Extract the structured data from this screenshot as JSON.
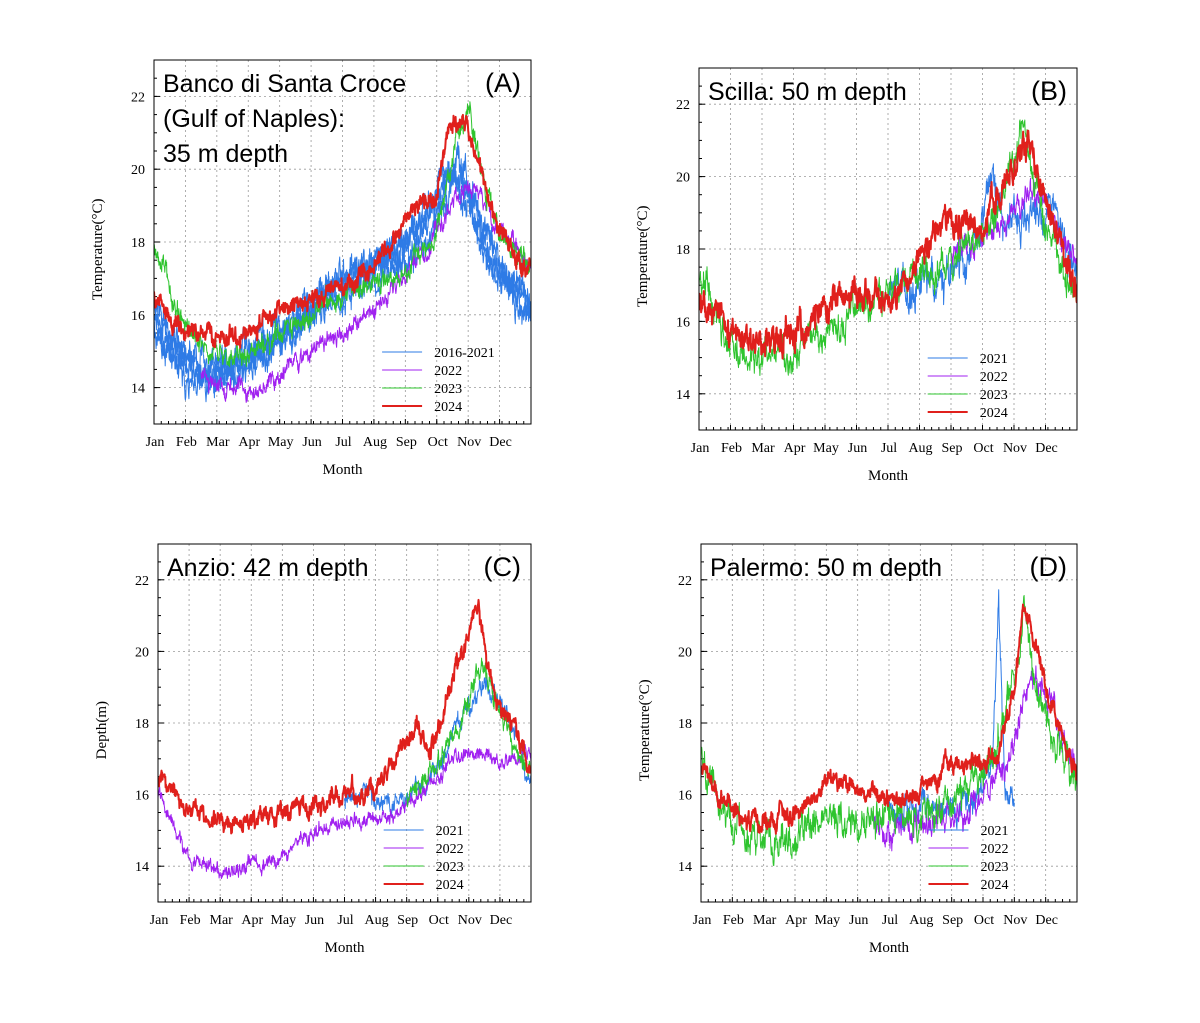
{
  "chart_data": [
    {
      "type": "line",
      "panel": "A",
      "title": "Banco di Santa Croce\n(Gulf of Naples):\n35 m depth",
      "letter": "(A)",
      "xlabel": "Month",
      "ylabel": "Temperature(°C)",
      "ylim": [
        13,
        23
      ],
      "yticks": [
        14,
        16,
        18,
        20,
        22
      ],
      "xlim": [
        0,
        12
      ],
      "xticks": [
        "Jan",
        "Feb",
        "Mar",
        "Apr",
        "May",
        "Jun",
        "Jul",
        "Aug",
        "Sep",
        "Oct",
        "Nov",
        "Dec"
      ],
      "grid": true,
      "legend_position": "bottom-right",
      "series": [
        {
          "name": "2016-2021",
          "color": "#2e7be6",
          "line_width": 1,
          "x": [
            0,
            0.5,
            1,
            1.5,
            2,
            2.5,
            3,
            3.5,
            4,
            4.5,
            5,
            5.5,
            6,
            6.5,
            7,
            7.5,
            8,
            8.5,
            9,
            9.3,
            9.6,
            10,
            10.3,
            10.6,
            11,
            11.5,
            12
          ],
          "y": [
            16.2,
            15.2,
            14.8,
            14.6,
            14.5,
            14.6,
            14.8,
            15.0,
            15.3,
            15.6,
            16.0,
            16.3,
            16.6,
            16.8,
            17.0,
            17.2,
            17.5,
            17.8,
            18.5,
            19.2,
            19.6,
            19.4,
            18.8,
            18.2,
            17.6,
            16.8,
            16.2
          ],
          "jitter": 0.45,
          "extra": [
            {
              "y": [
                15.8,
                15.0,
                14.5,
                14.3,
                14.2,
                14.4,
                14.7,
                15.0,
                15.3,
                15.7,
                16.1,
                16.5,
                16.9,
                17.1,
                17.3,
                17.5,
                17.9,
                18.3,
                19.0,
                19.8,
                20.2,
                19.6,
                18.6,
                17.9,
                17.2,
                16.5,
                15.9
              ],
              "jitter": 0.5
            },
            {
              "y": [
                15.6,
                14.8,
                14.3,
                14.1,
                14.0,
                14.2,
                14.6,
                15.0,
                15.4,
                15.9,
                16.3,
                16.6,
                16.9,
                17.1,
                17.4,
                17.7,
                18.1,
                18.5,
                19.1,
                19.6,
                19.9,
                19.3,
                18.4,
                17.7,
                17.0,
                16.2,
                15.8
              ],
              "jitter": 0.5
            },
            {
              "y": [
                16.4,
                15.4,
                14.9,
                14.7,
                14.8,
                14.9,
                15.1,
                15.3,
                15.6,
                16.0,
                16.4,
                16.7,
                17.0,
                17.2,
                17.4,
                17.6,
                17.9,
                18.4,
                19.3,
                20.0,
                19.7,
                18.9,
                18.1,
                17.6,
                17.1,
                16.6,
                16.3
              ],
              "jitter": 0.5
            }
          ]
        },
        {
          "name": "2022",
          "color": "#a020f0",
          "line_width": 1,
          "x": [
            1.5,
            2,
            2.5,
            3,
            3.5,
            4,
            4.5,
            5,
            5.5,
            6,
            6.5,
            7,
            7.5,
            8,
            8.5,
            9,
            9.5,
            10,
            10.5,
            11,
            11.5,
            12
          ],
          "y": [
            14.3,
            14.1,
            14.0,
            13.9,
            14.1,
            14.4,
            14.8,
            15.0,
            15.2,
            15.4,
            15.8,
            16.2,
            16.6,
            17.1,
            17.6,
            18.3,
            19.0,
            19.6,
            19.2,
            18.3,
            17.8,
            17.3
          ],
          "jitter": 0.3
        },
        {
          "name": "2023",
          "color": "#2ec42e",
          "line_width": 1,
          "x": [
            0,
            0.3,
            0.6,
            1,
            1.5,
            2,
            2.5,
            3,
            3.5,
            4,
            4.5,
            5,
            5.5,
            6,
            6.5,
            7,
            7.5,
            8,
            8.5,
            9,
            9.3,
            9.6,
            10,
            10.3,
            10.6,
            11,
            11.5,
            12
          ],
          "y": [
            17.7,
            17.3,
            16.4,
            15.6,
            15.1,
            14.9,
            14.8,
            14.9,
            15.2,
            15.5,
            15.8,
            16.0,
            16.3,
            16.5,
            16.7,
            16.9,
            17.0,
            17.2,
            17.6,
            18.3,
            19.4,
            20.8,
            21.6,
            20.6,
            19.2,
            18.4,
            17.7,
            17.3
          ],
          "jitter": 0.35
        },
        {
          "name": "2024",
          "color": "#e0201c",
          "line_width": 2,
          "x": [
            0,
            0.5,
            1,
            1.5,
            2,
            2.5,
            3,
            3.5,
            4,
            4.5,
            5,
            5.5,
            6,
            6.5,
            7,
            7.5,
            8,
            8.5,
            9,
            9.3,
            9.6,
            10,
            10.3,
            10.6,
            11,
            11.5,
            12
          ],
          "y": [
            16.6,
            15.9,
            15.5,
            15.4,
            15.3,
            15.4,
            15.6,
            15.8,
            16.0,
            16.2,
            16.4,
            16.6,
            16.8,
            17.0,
            17.3,
            17.8,
            18.8,
            19.1,
            19.3,
            21.0,
            21.3,
            21.1,
            20.3,
            19.2,
            18.5,
            17.6,
            17.2
          ],
          "jitter": 0.3
        }
      ]
    },
    {
      "type": "line",
      "panel": "B",
      "title": "Scilla: 50 m depth",
      "letter": "(B)",
      "xlabel": "Month",
      "ylabel": "Temperature(°C)",
      "ylim": [
        13,
        23
      ],
      "yticks": [
        14,
        16,
        18,
        20,
        22
      ],
      "xlim": [
        0,
        12
      ],
      "xticks": [
        "Jan",
        "Feb",
        "Mar",
        "Apr",
        "May",
        "Jun",
        "Jul",
        "Aug",
        "Sep",
        "Oct",
        "Nov",
        "Dec"
      ],
      "grid": true,
      "legend_position": "bottom-right",
      "series": [
        {
          "name": "2021",
          "color": "#2e7be6",
          "line_width": 1,
          "x": [
            6,
            6.5,
            7,
            7.5,
            8,
            8.5,
            9,
            9.3,
            9.6,
            10,
            10.5,
            11,
            11.5,
            12
          ],
          "y": [
            16.6,
            16.9,
            17.2,
            17.0,
            17.2,
            17.6,
            18.5,
            20.2,
            19.0,
            18.6,
            19.0,
            19.0,
            18.4,
            17.3
          ],
          "jitter": 0.6
        },
        {
          "name": "2022",
          "color": "#a020f0",
          "line_width": 1,
          "x": [
            8,
            8.5,
            9,
            9.5,
            10,
            10.5,
            11,
            11.5,
            12
          ],
          "y": [
            17.8,
            18.2,
            18.4,
            18.6,
            19.0,
            19.6,
            19.2,
            18.3,
            17.4
          ],
          "jitter": 0.35
        },
        {
          "name": "2023",
          "color": "#2ec42e",
          "line_width": 1,
          "x": [
            0,
            0.3,
            0.6,
            1,
            1.5,
            2,
            2.5,
            3,
            3.5,
            4,
            4.5,
            5,
            5.5,
            6,
            6.5,
            7,
            7.5,
            8,
            8.5,
            9,
            9.5,
            10,
            10.3,
            10.6,
            11,
            11.5,
            12
          ],
          "y": [
            17.2,
            16.9,
            16.0,
            15.4,
            15.0,
            14.9,
            15.0,
            15.2,
            15.4,
            15.6,
            15.9,
            16.2,
            16.5,
            16.8,
            17.0,
            17.2,
            17.4,
            17.7,
            18.0,
            18.3,
            19.0,
            20.5,
            21.2,
            19.8,
            18.6,
            17.6,
            16.8
          ],
          "jitter": 0.5
        },
        {
          "name": "2024",
          "color": "#e0201c",
          "line_width": 2,
          "x": [
            0,
            0.5,
            1,
            1.5,
            2,
            2.5,
            3,
            3.5,
            4,
            4.5,
            5,
            5.5,
            6,
            6.5,
            7,
            7.5,
            8,
            8.5,
            9,
            9.3,
            9.6,
            10,
            10.3,
            10.6,
            11,
            11.5,
            12
          ],
          "y": [
            16.6,
            16.3,
            15.8,
            15.6,
            15.5,
            15.4,
            15.6,
            16.0,
            16.4,
            16.7,
            16.8,
            16.7,
            16.6,
            17.0,
            17.8,
            18.6,
            18.9,
            18.9,
            18.7,
            19.4,
            19.6,
            20.0,
            20.8,
            20.5,
            19.2,
            18.0,
            16.6
          ],
          "jitter": 0.45
        }
      ]
    },
    {
      "type": "line",
      "panel": "C",
      "title": "Anzio: 42 m depth",
      "letter": "(C)",
      "xlabel": "Month",
      "ylabel": "Depth(m)",
      "ylim": [
        13,
        23
      ],
      "yticks": [
        14,
        16,
        18,
        20,
        22
      ],
      "xlim": [
        0,
        12
      ],
      "xticks": [
        "Jan",
        "Feb",
        "Mar",
        "Apr",
        "May",
        "Jun",
        "Jul",
        "Aug",
        "Sep",
        "Oct",
        "Nov",
        "Dec"
      ],
      "grid": true,
      "legend_position": "bottom-right",
      "series": [
        {
          "name": "2021",
          "color": "#2e7be6",
          "line_width": 1,
          "x": [
            6,
            6.5,
            7,
            7.5,
            8,
            8.5,
            9,
            9.5,
            10,
            10.5,
            11,
            11.5,
            12
          ],
          "y": [
            15.9,
            15.9,
            15.8,
            15.8,
            15.9,
            16.2,
            16.8,
            17.6,
            18.4,
            19.1,
            18.6,
            17.6,
            16.3
          ],
          "jitter": 0.3
        },
        {
          "name": "2022",
          "color": "#a020f0",
          "line_width": 1,
          "x": [
            0,
            0.3,
            0.6,
            1,
            1.5,
            2,
            2.5,
            3,
            3.5,
            4,
            4.5,
            5,
            5.5,
            6,
            6.5,
            7,
            7.5,
            8,
            8.5,
            9,
            9.5,
            10,
            10.5,
            11,
            11.5,
            12
          ],
          "y": [
            16.0,
            15.4,
            14.8,
            14.3,
            14.0,
            13.9,
            13.9,
            14.0,
            14.1,
            14.2,
            14.6,
            14.9,
            15.1,
            15.2,
            15.2,
            15.3,
            15.4,
            15.6,
            16.1,
            16.6,
            17.0,
            17.2,
            17.1,
            17.0,
            16.9,
            17.2
          ],
          "jitter": 0.25
        },
        {
          "name": "2023",
          "color": "#2ec42e",
          "line_width": 1,
          "x": [
            8,
            8.5,
            9,
            9.5,
            10,
            10.3,
            10.6,
            11,
            11.5,
            12
          ],
          "y": [
            15.9,
            16.3,
            16.9,
            17.6,
            18.5,
            19.6,
            19.2,
            18.2,
            17.4,
            16.6
          ],
          "jitter": 0.35
        },
        {
          "name": "2024",
          "color": "#e0201c",
          "line_width": 2,
          "x": [
            0,
            0.5,
            1,
            1.5,
            2,
            2.5,
            3,
            3.5,
            4,
            4.5,
            5,
            5.5,
            6,
            6.5,
            7,
            7.5,
            8,
            8.3,
            8.6,
            9,
            9.3,
            9.6,
            10,
            10.3,
            10.6,
            11,
            11.5,
            12
          ],
          "y": [
            16.4,
            16.1,
            15.6,
            15.3,
            15.2,
            15.2,
            15.3,
            15.4,
            15.5,
            15.6,
            15.7,
            15.9,
            16.1,
            16.0,
            16.1,
            16.9,
            17.4,
            18.2,
            17.2,
            17.7,
            18.6,
            19.6,
            20.4,
            21.2,
            19.6,
            18.4,
            17.8,
            16.6
          ],
          "jitter": 0.3
        }
      ]
    },
    {
      "type": "line",
      "panel": "D",
      "title": "Palermo: 50 m depth",
      "letter": "(D)",
      "xlabel": "Month",
      "ylabel": "Temperature(°C)",
      "ylim": [
        13,
        23
      ],
      "yticks": [
        14,
        16,
        18,
        20,
        22
      ],
      "xlim": [
        0,
        12
      ],
      "xticks": [
        "Jan",
        "Feb",
        "Mar",
        "Apr",
        "May",
        "Jun",
        "Jul",
        "Aug",
        "Sep",
        "Oct",
        "Nov",
        "Dec"
      ],
      "grid": true,
      "legend_position": "bottom-right",
      "series": [
        {
          "name": "2021",
          "color": "#2e7be6",
          "line_width": 1,
          "x": [
            6,
            6.5,
            7,
            7.5,
            8,
            8.5,
            9,
            9.3,
            9.5,
            9.7,
            10
          ],
          "y": [
            15.4,
            15.6,
            15.7,
            15.6,
            15.5,
            15.8,
            16.3,
            16.8,
            21.5,
            16.0,
            15.6
          ],
          "jitter": 0.45
        },
        {
          "name": "2022",
          "color": "#a020f0",
          "line_width": 1,
          "x": [
            5.5,
            6,
            6.5,
            7,
            7.5,
            8,
            8.5,
            9,
            9.5,
            10,
            10.5,
            11,
            11.5,
            12
          ],
          "y": [
            15.2,
            15.0,
            15.1,
            15.3,
            15.4,
            15.4,
            15.6,
            16.0,
            16.6,
            17.4,
            19.4,
            19.0,
            17.6,
            16.4
          ],
          "jitter": 0.45
        },
        {
          "name": "2023",
          "color": "#2ec42e",
          "line_width": 1,
          "x": [
            0,
            0.3,
            0.6,
            1,
            1.5,
            2,
            2.5,
            3,
            3.5,
            4,
            4.5,
            5,
            5.5,
            6,
            6.5,
            7,
            7.5,
            8,
            8.5,
            9,
            9.5,
            10,
            10.3,
            10.6,
            11,
            11.5,
            12
          ],
          "y": [
            16.8,
            16.4,
            15.7,
            15.1,
            14.8,
            14.7,
            14.8,
            14.9,
            15.0,
            15.1,
            15.2,
            15.3,
            15.4,
            15.4,
            15.3,
            15.4,
            15.6,
            15.8,
            16.2,
            16.4,
            17.5,
            19.6,
            21.0,
            19.4,
            18.0,
            17.2,
            16.5
          ],
          "jitter": 0.55
        },
        {
          "name": "2024",
          "color": "#e0201c",
          "line_width": 2,
          "x": [
            0,
            0.5,
            1,
            1.5,
            2,
            2.5,
            3,
            3.5,
            4,
            4.5,
            5,
            5.5,
            6,
            6.5,
            7,
            7.5,
            8,
            8.5,
            9,
            9.5,
            10,
            10.3,
            10.6,
            11,
            11.5,
            12
          ],
          "y": [
            16.7,
            16.2,
            15.5,
            15.3,
            15.2,
            15.3,
            15.5,
            15.9,
            16.4,
            16.3,
            16.1,
            16.0,
            15.9,
            15.9,
            16.1,
            16.4,
            16.9,
            16.8,
            16.7,
            17.2,
            19.0,
            21.2,
            20.4,
            19.0,
            17.8,
            16.2
          ],
          "jitter": 0.3
        }
      ]
    }
  ]
}
